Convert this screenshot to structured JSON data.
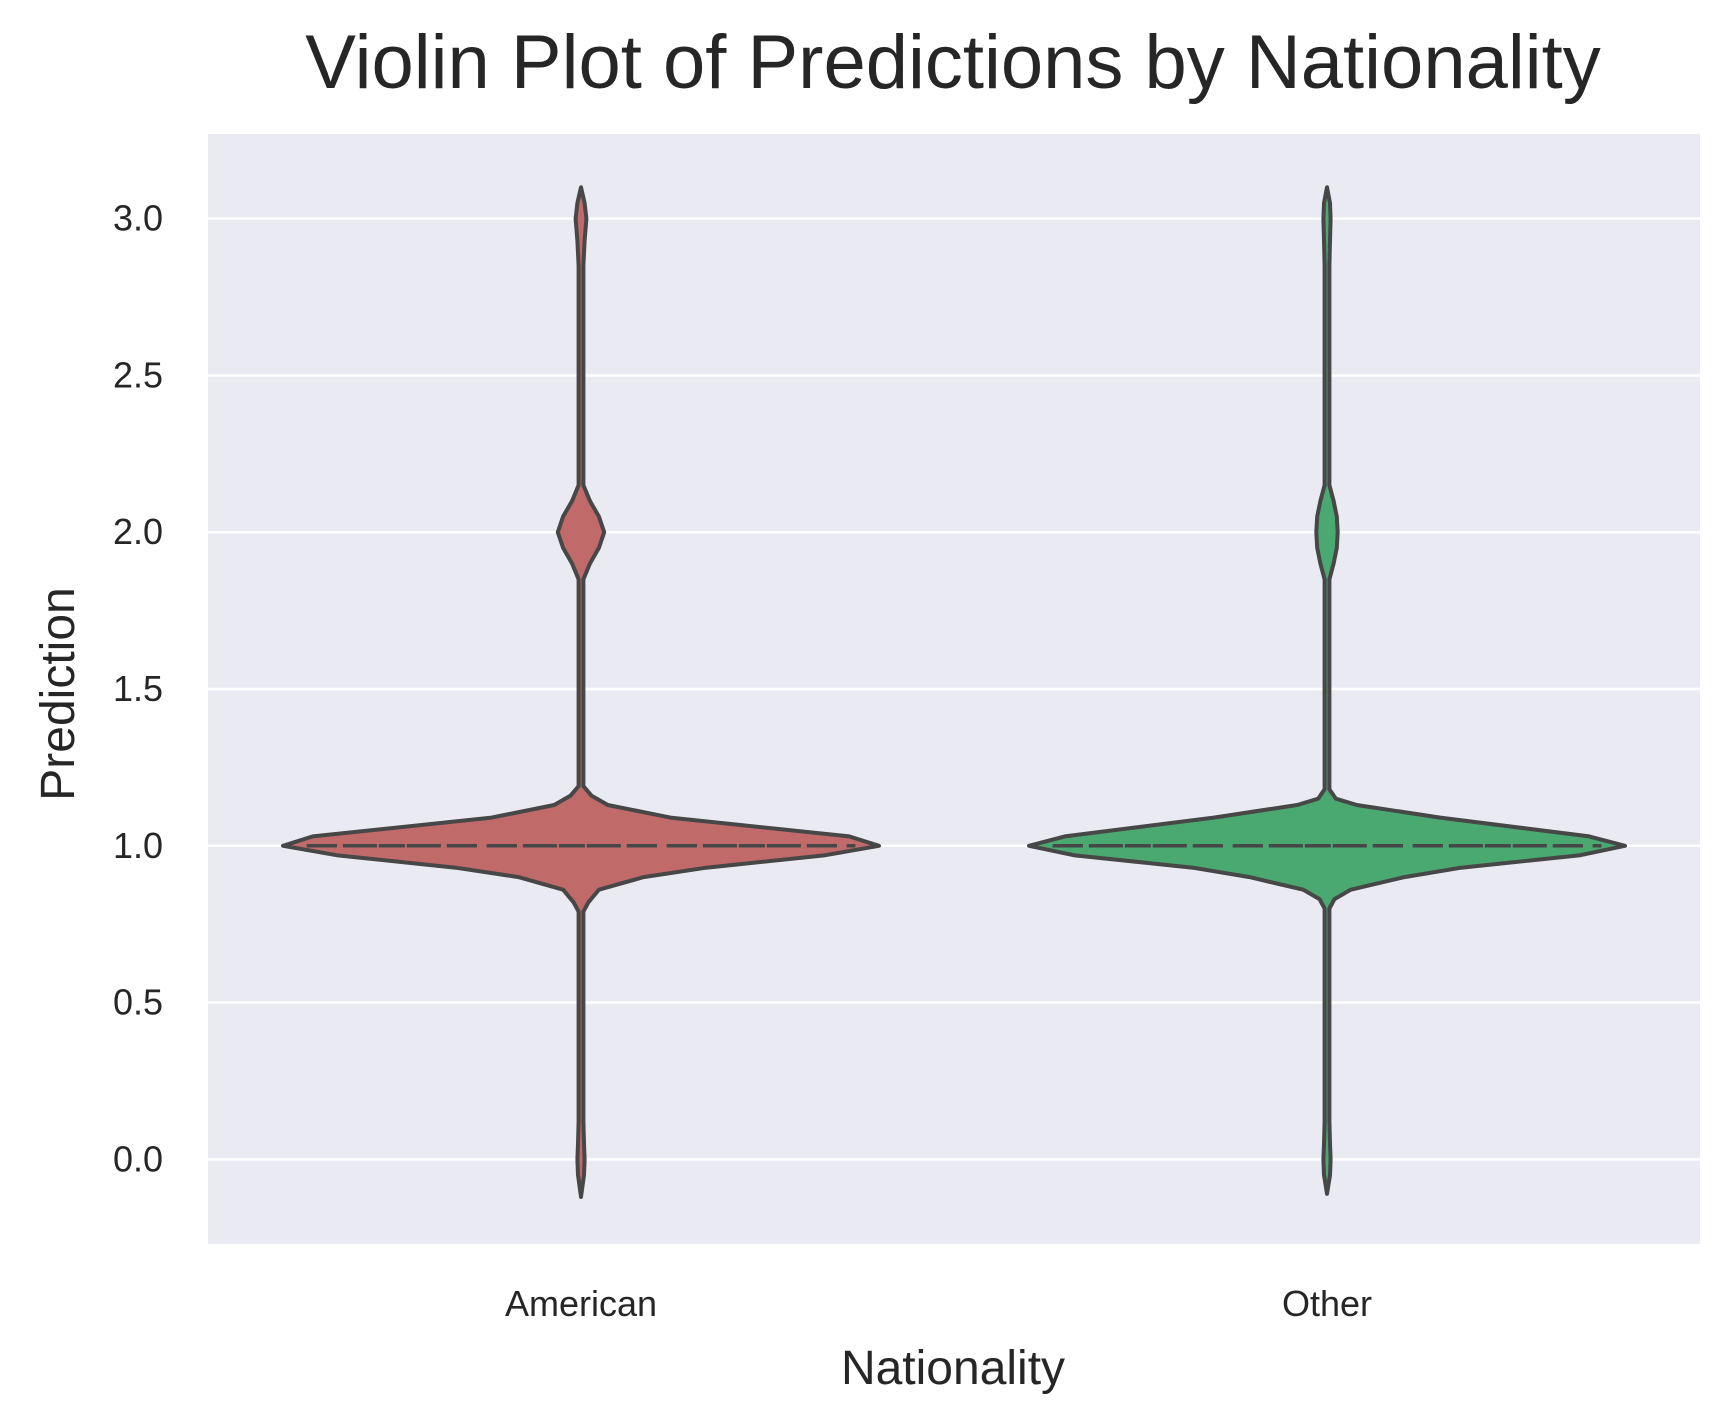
{
  "chart_data": {
    "type": "violin",
    "title": "Violin Plot of Predictions by Nationality",
    "xlabel": "Nationality",
    "ylabel": "Prediction",
    "categories": [
      "American",
      "Other"
    ],
    "ylim": [
      -0.27,
      3.27
    ],
    "yticks": [
      "0.0",
      "0.5",
      "1.0",
      "1.5",
      "2.0",
      "2.5",
      "3.0"
    ],
    "grid": true,
    "legend": "none",
    "background_color": "#eaeaf2",
    "grid_color": "#ffffff",
    "outline_color": "#474747",
    "inner": "quartile",
    "violins": [
      {
        "category": "American",
        "color": "#c16a6a",
        "quartiles": [
          1.0,
          1.0,
          1.0
        ],
        "density_profile": [
          {
            "y": -0.12,
            "w": 0.0
          },
          {
            "y": -0.05,
            "w": 0.01
          },
          {
            "y": 0.0,
            "w": 0.012
          },
          {
            "y": 0.05,
            "w": 0.01
          },
          {
            "y": 0.12,
            "w": 0.008
          },
          {
            "y": 0.79,
            "w": 0.008
          },
          {
            "y": 0.82,
            "w": 0.025
          },
          {
            "y": 0.86,
            "w": 0.06
          },
          {
            "y": 0.9,
            "w": 0.21
          },
          {
            "y": 0.93,
            "w": 0.42
          },
          {
            "y": 0.97,
            "w": 0.82
          },
          {
            "y": 1.0,
            "w": 1.0
          },
          {
            "y": 1.03,
            "w": 0.9
          },
          {
            "y": 1.09,
            "w": 0.3
          },
          {
            "y": 1.13,
            "w": 0.09
          },
          {
            "y": 1.16,
            "w": 0.035
          },
          {
            "y": 1.19,
            "w": 0.008
          },
          {
            "y": 1.85,
            "w": 0.008
          },
          {
            "y": 1.9,
            "w": 0.03
          },
          {
            "y": 1.95,
            "w": 0.06
          },
          {
            "y": 2.0,
            "w": 0.078
          },
          {
            "y": 2.05,
            "w": 0.06
          },
          {
            "y": 2.1,
            "w": 0.03
          },
          {
            "y": 2.15,
            "w": 0.008
          },
          {
            "y": 2.85,
            "w": 0.008
          },
          {
            "y": 2.93,
            "w": 0.012
          },
          {
            "y": 3.0,
            "w": 0.018
          },
          {
            "y": 3.05,
            "w": 0.012
          },
          {
            "y": 3.1,
            "w": 0.0
          }
        ]
      },
      {
        "category": "Other",
        "color": "#4aa871",
        "quartiles": [
          1.0,
          1.0,
          1.0
        ],
        "density_profile": [
          {
            "y": -0.11,
            "w": 0.0
          },
          {
            "y": -0.05,
            "w": 0.01
          },
          {
            "y": 0.0,
            "w": 0.012
          },
          {
            "y": 0.05,
            "w": 0.01
          },
          {
            "y": 0.12,
            "w": 0.008
          },
          {
            "y": 0.8,
            "w": 0.008
          },
          {
            "y": 0.83,
            "w": 0.025
          },
          {
            "y": 0.86,
            "w": 0.08
          },
          {
            "y": 0.9,
            "w": 0.26
          },
          {
            "y": 0.93,
            "w": 0.45
          },
          {
            "y": 0.97,
            "w": 0.85
          },
          {
            "y": 1.0,
            "w": 1.0
          },
          {
            "y": 1.03,
            "w": 0.88
          },
          {
            "y": 1.09,
            "w": 0.38
          },
          {
            "y": 1.13,
            "w": 0.1
          },
          {
            "y": 1.15,
            "w": 0.03
          },
          {
            "y": 1.18,
            "w": 0.008
          },
          {
            "y": 1.85,
            "w": 0.008
          },
          {
            "y": 1.9,
            "w": 0.022
          },
          {
            "y": 1.95,
            "w": 0.033
          },
          {
            "y": 2.0,
            "w": 0.036
          },
          {
            "y": 2.05,
            "w": 0.033
          },
          {
            "y": 2.1,
            "w": 0.022
          },
          {
            "y": 2.15,
            "w": 0.008
          },
          {
            "y": 2.85,
            "w": 0.008
          },
          {
            "y": 2.93,
            "w": 0.01
          },
          {
            "y": 3.0,
            "w": 0.012
          },
          {
            "y": 3.05,
            "w": 0.01
          },
          {
            "y": 3.1,
            "w": 0.0
          }
        ]
      }
    ]
  }
}
